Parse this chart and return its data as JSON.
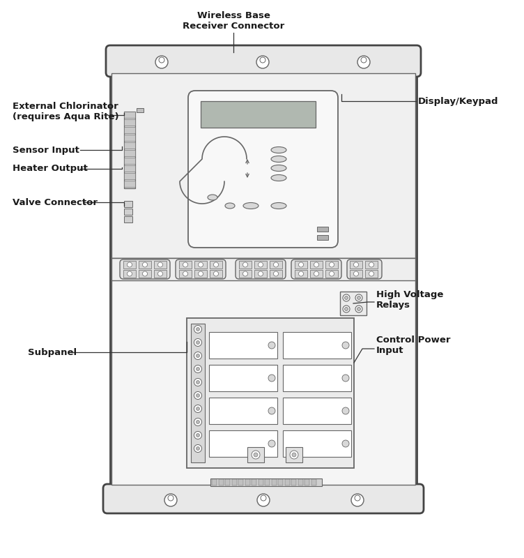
{
  "bg_color": "#ffffff",
  "lc": "#666666",
  "lc_dark": "#444444",
  "fill_cabinet": "#f2f2f2",
  "fill_panel": "#e8e8e8",
  "fill_light": "#f0f0f0",
  "fill_medium": "#d8d8d8",
  "fill_dark": "#b8b8b8",
  "fill_screen": "#b0b8b0",
  "labels": {
    "wireless": "Wireless Base\nReceiver Connector",
    "display": "Display/Keypad",
    "ext_chlor": "External Chlorinator\n(requires Aqua Rite)",
    "sensor": "Sensor Input",
    "heater": "Heater Output",
    "valve": "Valve Connector",
    "subpanel": "Subpanel",
    "high_voltage": "High Voltage\nRelays",
    "control_power": "Control Power\nInput"
  },
  "figsize": [
    7.52,
    8.0
  ],
  "dpi": 100
}
